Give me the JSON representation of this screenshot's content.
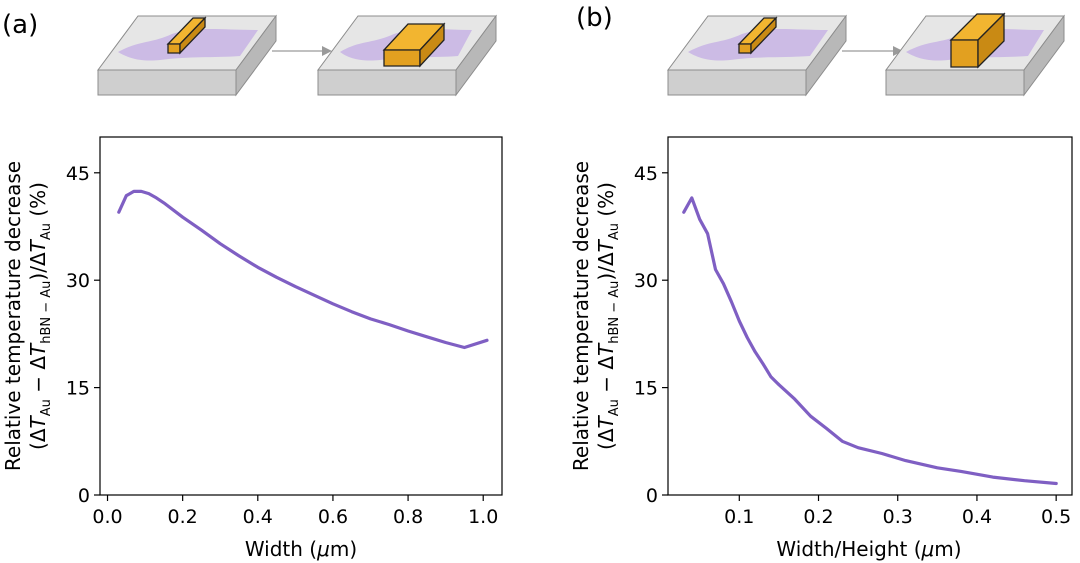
{
  "colors": {
    "line": "#7f5fc3",
    "gold_top": "#f2b530",
    "gold_front": "#e2a020",
    "gold_side": "#c98a14",
    "hbn": "#c9b6e4",
    "slab_top": "#e6e6e6",
    "slab_front": "#cfcfcf",
    "slab_side": "#b8b8b8",
    "arrow": "#9a9a9a"
  },
  "chart_data": [
    {
      "type": "line",
      "panel_label": "(a)",
      "title": "",
      "xlabel": "Width (μm)",
      "ylabel_line1": "Relative temperature decrease",
      "ylabel_line2": "(ΔT_Au − ΔT_hBN−Au)/ΔT_Au (%)",
      "xlim": [
        -0.02,
        1.05
      ],
      "ylim": [
        0,
        50
      ],
      "xticks": [
        0.0,
        0.2,
        0.4,
        0.6,
        0.8,
        1.0
      ],
      "xtick_labels": [
        "0.0",
        "0.2",
        "0.4",
        "0.6",
        "0.8",
        "1.0"
      ],
      "yticks": [
        0,
        15,
        30,
        45
      ],
      "ytick_labels": [
        "0",
        "15",
        "30",
        "45"
      ],
      "series": [
        {
          "x": [
            0.03,
            0.05,
            0.07,
            0.09,
            0.11,
            0.13,
            0.15,
            0.2,
            0.25,
            0.3,
            0.35,
            0.4,
            0.45,
            0.5,
            0.55,
            0.6,
            0.65,
            0.7,
            0.75,
            0.8,
            0.85,
            0.9,
            0.95,
            1.01
          ],
          "y": [
            39.5,
            41.8,
            42.4,
            42.4,
            42.1,
            41.5,
            40.8,
            38.8,
            37.0,
            35.1,
            33.4,
            31.8,
            30.4,
            29.1,
            27.9,
            26.7,
            25.6,
            24.6,
            23.8,
            22.9,
            22.1,
            21.3,
            20.6,
            21.6
          ]
        }
      ]
    },
    {
      "type": "line",
      "panel_label": "(b)",
      "title": "",
      "xlabel": "Width/Height (μm)",
      "ylabel_line1": "Relative temperature decrease",
      "ylabel_line2": "(ΔT_Au − ΔT_hBN−Au)/ΔT_Au (%)",
      "xlim": [
        0.01,
        0.52
      ],
      "ylim": [
        0,
        50
      ],
      "xticks": [
        0.1,
        0.2,
        0.3,
        0.4,
        0.5
      ],
      "xtick_labels": [
        "0.1",
        "0.2",
        "0.3",
        "0.4",
        "0.5"
      ],
      "yticks": [
        0,
        15,
        30,
        45
      ],
      "ytick_labels": [
        "0",
        "15",
        "30",
        "45"
      ],
      "series": [
        {
          "x": [
            0.03,
            0.04,
            0.05,
            0.06,
            0.07,
            0.08,
            0.09,
            0.1,
            0.11,
            0.12,
            0.13,
            0.14,
            0.15,
            0.17,
            0.19,
            0.21,
            0.23,
            0.25,
            0.28,
            0.31,
            0.35,
            0.38,
            0.42,
            0.46,
            0.5
          ],
          "y": [
            39.5,
            41.5,
            38.5,
            36.5,
            31.5,
            29.5,
            27.0,
            24.3,
            22.0,
            20.0,
            18.3,
            16.5,
            15.4,
            13.4,
            11.0,
            9.3,
            7.5,
            6.6,
            5.8,
            4.8,
            3.8,
            3.3,
            2.5,
            2.0,
            1.6
          ]
        }
      ]
    }
  ]
}
